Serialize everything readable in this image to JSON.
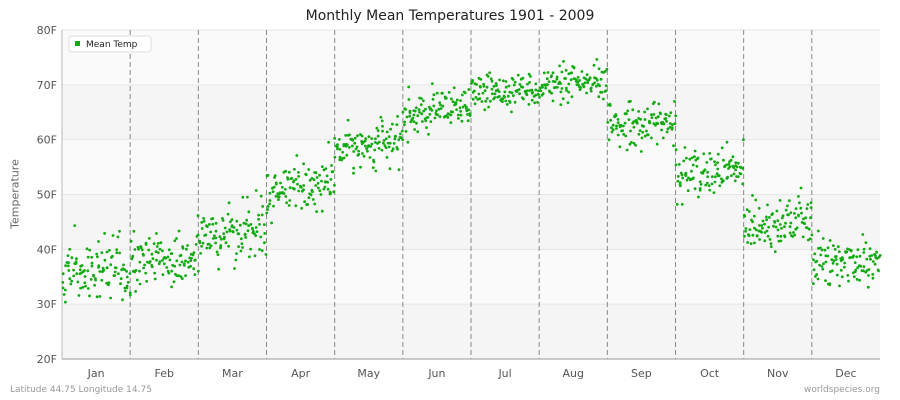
{
  "chart_data": {
    "type": "scatter",
    "title": "Monthly Mean Temperatures 1901 - 2009",
    "ylabel": "Temperature",
    "xlabel": "",
    "x_categories": [
      "Jan",
      "Feb",
      "Mar",
      "Apr",
      "May",
      "Jun",
      "Jul",
      "Aug",
      "Sep",
      "Oct",
      "Nov",
      "Dec"
    ],
    "y_ticks": [
      "20F",
      "30F",
      "40F",
      "50F",
      "60F",
      "70F",
      "80F"
    ],
    "ylim": [
      20,
      80
    ],
    "legend": {
      "label": "Mean Temp",
      "placement": "top-left"
    },
    "series": [
      {
        "name": "Mean Temp",
        "color": "#11aa11",
        "points_per_month": 109,
        "monthly_mean": [
          36,
          38,
          43,
          51,
          59,
          65,
          69,
          70,
          63,
          54,
          45,
          38
        ],
        "monthly_spread": [
          2.8,
          2.8,
          2.5,
          2.3,
          2.0,
          1.8,
          1.5,
          1.6,
          2.0,
          2.2,
          2.3,
          2.5
        ],
        "trend_within_month": [
          0.0,
          1.5,
          2.0,
          2.0,
          1.5,
          1.5,
          0.5,
          0.5,
          0.5,
          1.0,
          0.5,
          1.5
        ]
      }
    ]
  },
  "footer": {
    "location": "Latitude 44.75 Longitude 14.75",
    "source": "worldspecies.org"
  }
}
